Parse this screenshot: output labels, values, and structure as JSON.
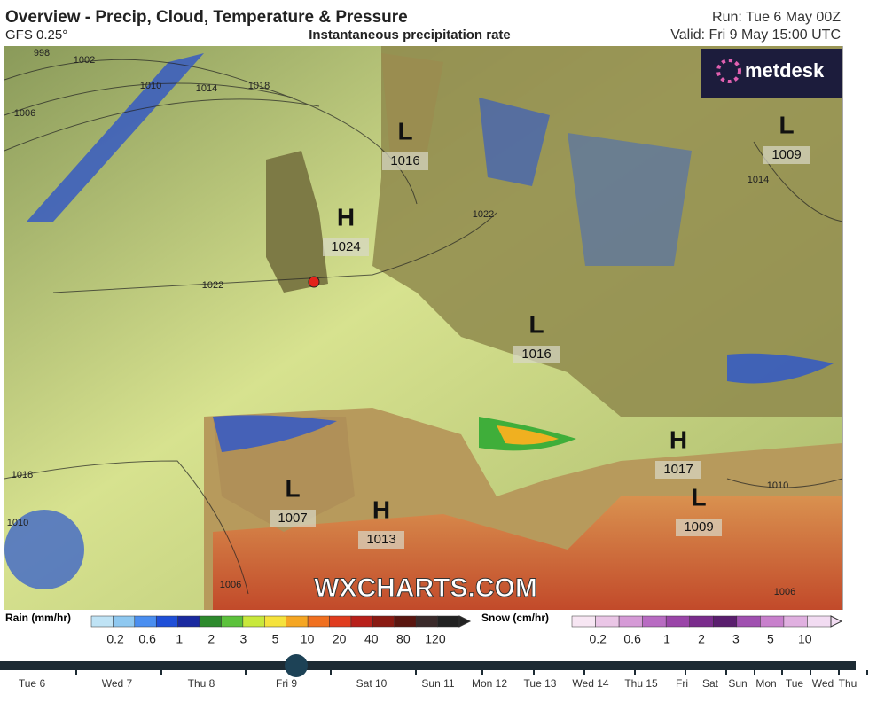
{
  "header": {
    "title": "Overview - Precip, Cloud, Temperature & Pressure",
    "model": "GFS 0.25°",
    "subtitle": "Instantaneous precipitation rate",
    "run": "Run: Tue 6 May 00Z",
    "valid": "Valid: Fri 9 May 15:00 UTC"
  },
  "logo": "metdesk",
  "watermark": "WXCHARTS.COM",
  "pressure_centers": [
    {
      "kind": "L",
      "value": "1016"
    },
    {
      "kind": "L",
      "value": "1009"
    },
    {
      "kind": "H",
      "value": "1024"
    },
    {
      "kind": "L",
      "value": "1016"
    },
    {
      "kind": "H",
      "value": "1017"
    },
    {
      "kind": "L",
      "value": "1009"
    },
    {
      "kind": "L",
      "value": "1007"
    },
    {
      "kind": "H",
      "value": "1013"
    }
  ],
  "isobar_labels": [
    "998",
    "1002",
    "1006",
    "1010",
    "1014",
    "1018",
    "1022",
    "1018",
    "1022",
    "1014",
    "1010",
    "1010",
    "1006",
    "1006"
  ],
  "rain_legend": {
    "label": "Rain (mm/hr)",
    "ticks": [
      "0.2",
      "0.6",
      "1",
      "2",
      "3",
      "5",
      "10",
      "20",
      "40",
      "80",
      "120"
    ],
    "colors": [
      "#bfe3f5",
      "#8ec8f0",
      "#4a8ef0",
      "#1f4fd8",
      "#1a2aa0",
      "#2d8a2d",
      "#5cc23c",
      "#c8e83c",
      "#f5e23c",
      "#f5a623",
      "#f07020",
      "#e03c1e",
      "#b8201a",
      "#8a1a12",
      "#5a1610",
      "#3a2a2a",
      "#222"
    ]
  },
  "snow_legend": {
    "label": "Snow (cm/hr)",
    "ticks": [
      "0.2",
      "0.6",
      "1",
      "2",
      "3",
      "5",
      "10"
    ],
    "colors": [
      "#f7e6f3",
      "#eac6e6",
      "#d59ad6",
      "#b86bc2",
      "#9a45a8",
      "#7a2c8c",
      "#5a1e6e",
      "#a050b0",
      "#c880cc",
      "#e0b0e0",
      "#f2dcf2"
    ]
  },
  "timeline": {
    "labels": [
      "Tue 6",
      "Wed 7",
      "Thu 8",
      "Fri 9",
      "Sat 10",
      "Sun 11",
      "Mon 12",
      "Tue 13",
      "Wed 14",
      "Thu 15",
      "Fri",
      "Sat",
      "Sun",
      "Mon",
      "Tue",
      "Wed",
      "Thu"
    ],
    "selected": 3
  }
}
